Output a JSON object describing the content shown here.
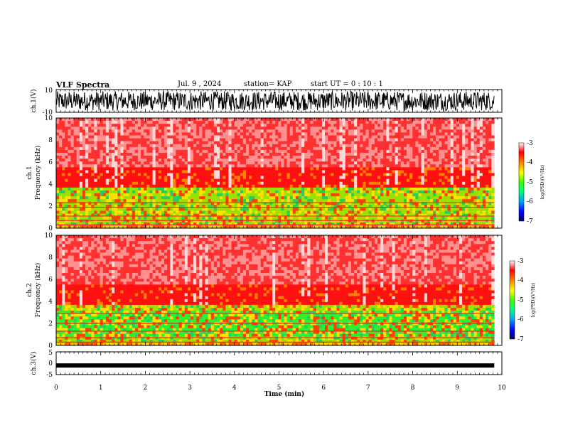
{
  "header": {
    "title": "VLF Spectra",
    "date": "Jul. 9 , 2024",
    "station": "station= KAP",
    "start": "start UT = 0 : 10 : 1"
  },
  "chart_data": [
    {
      "type": "line",
      "panel": "ch1-waveform",
      "ylabel": "ch.1(V)",
      "ylim": [
        -10,
        10
      ],
      "yticks": [
        "10",
        "-10"
      ],
      "xlim": [
        0,
        10
      ],
      "x_data_end": 9.83
    },
    {
      "type": "heatmap",
      "panel": "ch1-spectrogram",
      "ylabel": "ch.1\nFrequency (kHz)",
      "ylim": [
        0,
        10
      ],
      "yticks": [
        "0",
        "2",
        "4",
        "6",
        "8",
        "10"
      ],
      "xlim": [
        0,
        10
      ],
      "colorbar": {
        "label": "log(PSD)(V²/Hz)",
        "range": [
          -7,
          -3
        ],
        "ticks": [
          "-3",
          "-4",
          "-5",
          "-6",
          "-7"
        ]
      },
      "bands_khz": [
        0.3,
        0.7,
        1.1,
        1.9,
        2.3
      ]
    },
    {
      "type": "heatmap",
      "panel": "ch2-spectrogram",
      "ylabel": "ch.2\nFrequency (kHz)",
      "ylim": [
        0,
        10
      ],
      "yticks": [
        "0",
        "2",
        "4",
        "6",
        "8",
        "10"
      ],
      "xlim": [
        0,
        10
      ],
      "colorbar": {
        "label": "log(PSD)(V²/Hz)",
        "range": [
          -7,
          -3
        ],
        "ticks": [
          "-3",
          "-4",
          "-5",
          "-6",
          "-7"
        ]
      },
      "bands_khz": [
        0.3,
        0.7,
        1.3,
        2.0,
        2.9
      ]
    },
    {
      "type": "line",
      "panel": "ch3-waveform",
      "ylabel": "ch.3(V)",
      "ylim": [
        -5,
        5
      ],
      "yticks": [
        "5",
        "0",
        "-5"
      ],
      "xlim": [
        0,
        10
      ],
      "xticks": [
        "0",
        "1",
        "2",
        "3",
        "4",
        "5",
        "6",
        "7",
        "8",
        "9",
        "10"
      ],
      "xlabel": "Time (min)",
      "level": -1
    }
  ]
}
